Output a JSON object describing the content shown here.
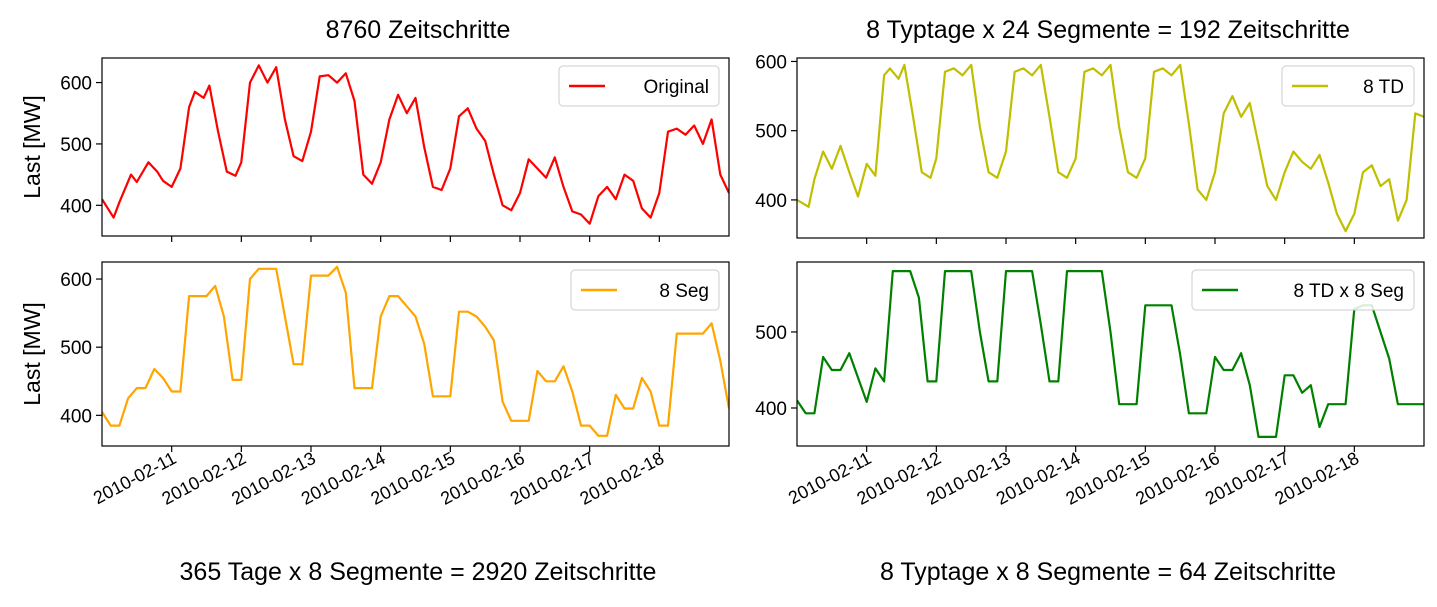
{
  "figure": {
    "top_left_title": "8760 Zeitschritte",
    "top_right_title": "8 Typtage x 24 Segmente = 192 Zeitschritte",
    "bottom_left_caption": "365 Tage x 8 Segmente = 2920 Zeitschritte",
    "bottom_right_caption": "8 Typtage x 8 Segmente = 64 Zeitschritte",
    "ylabel": "Last [MW]"
  },
  "chart_data": [
    {
      "type": "line",
      "title": "8760 Zeitschritte",
      "ylabel": "Last [MW]",
      "ylim": [
        350,
        640
      ],
      "yticks": [
        400,
        500,
        600
      ],
      "x_dates": [
        "2010-02-11",
        "2010-02-12",
        "2010-02-13",
        "2010-02-14",
        "2010-02-15",
        "2010-02-16",
        "2010-02-17",
        "2010-02-18"
      ],
      "xlim": [
        "2010-02-10 00:00",
        "2010-02-19 00:00"
      ],
      "legend": "top-right",
      "series": [
        {
          "name": "Original",
          "color": "#ff0000",
          "x": [
            "2010-02-10 00:00",
            "2010-02-10 04:00",
            "2010-02-10 06:00",
            "2010-02-10 10:00",
            "2010-02-10 12:00",
            "2010-02-10 16:00",
            "2010-02-10 19:00",
            "2010-02-10 21:00",
            "2010-02-11 00:00",
            "2010-02-11 03:00",
            "2010-02-11 06:00",
            "2010-02-11 08:00",
            "2010-02-11 11:00",
            "2010-02-11 13:00",
            "2010-02-11 16:00",
            "2010-02-11 19:00",
            "2010-02-11 22:00",
            "2010-02-12 00:00",
            "2010-02-12 03:00",
            "2010-02-12 06:00",
            "2010-02-12 09:00",
            "2010-02-12 12:00",
            "2010-02-12 15:00",
            "2010-02-12 18:00",
            "2010-02-12 21:00",
            "2010-02-13 00:00",
            "2010-02-13 03:00",
            "2010-02-13 06:00",
            "2010-02-13 09:00",
            "2010-02-13 12:00",
            "2010-02-13 15:00",
            "2010-02-13 18:00",
            "2010-02-13 21:00",
            "2010-02-14 00:00",
            "2010-02-14 03:00",
            "2010-02-14 06:00",
            "2010-02-14 09:00",
            "2010-02-14 12:00",
            "2010-02-14 15:00",
            "2010-02-14 18:00",
            "2010-02-14 21:00",
            "2010-02-15 00:00",
            "2010-02-15 03:00",
            "2010-02-15 06:00",
            "2010-02-15 09:00",
            "2010-02-15 12:00",
            "2010-02-15 15:00",
            "2010-02-15 18:00",
            "2010-02-15 21:00",
            "2010-02-16 00:00",
            "2010-02-16 03:00",
            "2010-02-16 06:00",
            "2010-02-16 09:00",
            "2010-02-16 12:00",
            "2010-02-16 15:00",
            "2010-02-16 18:00",
            "2010-02-16 21:00",
            "2010-02-17 00:00",
            "2010-02-17 03:00",
            "2010-02-17 06:00",
            "2010-02-17 09:00",
            "2010-02-17 12:00",
            "2010-02-17 15:00",
            "2010-02-17 18:00",
            "2010-02-17 21:00",
            "2010-02-18 00:00",
            "2010-02-18 03:00",
            "2010-02-18 06:00",
            "2010-02-18 09:00",
            "2010-02-18 12:00",
            "2010-02-18 15:00",
            "2010-02-18 18:00",
            "2010-02-18 21:00",
            "2010-02-19 00:00"
          ],
          "y": [
            410,
            380,
            405,
            450,
            438,
            470,
            455,
            440,
            430,
            460,
            560,
            585,
            575,
            595,
            520,
            455,
            448,
            470,
            600,
            628,
            600,
            625,
            540,
            480,
            472,
            520,
            610,
            612,
            600,
            615,
            570,
            450,
            435,
            470,
            540,
            580,
            550,
            575,
            495,
            430,
            425,
            460,
            545,
            558,
            525,
            505,
            450,
            400,
            392,
            420,
            475,
            460,
            445,
            478,
            430,
            390,
            385,
            370,
            415,
            430,
            410,
            450,
            440,
            395,
            380,
            420,
            520,
            525,
            515,
            530,
            500,
            540,
            450,
            420
          ]
        }
      ]
    },
    {
      "type": "line",
      "title": "8 Typtage x 24 Segmente = 192 Zeitschritte",
      "ylim": [
        345,
        605
      ],
      "yticks": [
        400,
        500,
        600
      ],
      "x_dates": [
        "2010-02-11",
        "2010-02-12",
        "2010-02-13",
        "2010-02-14",
        "2010-02-15",
        "2010-02-16",
        "2010-02-17",
        "2010-02-18"
      ],
      "xlim": [
        "2010-02-10 00:00",
        "2010-02-19 00:00"
      ],
      "legend": "top-right",
      "series": [
        {
          "name": "8 TD",
          "color": "#bfbf00",
          "x": [
            "2010-02-10 00:00",
            "2010-02-10 04:00",
            "2010-02-10 06:00",
            "2010-02-10 09:00",
            "2010-02-10 12:00",
            "2010-02-10 15:00",
            "2010-02-10 18:00",
            "2010-02-10 21:00",
            "2010-02-11 00:00",
            "2010-02-11 03:00",
            "2010-02-11 06:00",
            "2010-02-11 08:00",
            "2010-02-11 11:00",
            "2010-02-11 13:00",
            "2010-02-11 16:00",
            "2010-02-11 19:00",
            "2010-02-11 22:00",
            "2010-02-12 00:00",
            "2010-02-12 03:00",
            "2010-02-12 06:00",
            "2010-02-12 09:00",
            "2010-02-12 12:00",
            "2010-02-12 15:00",
            "2010-02-12 18:00",
            "2010-02-12 21:00",
            "2010-02-13 00:00",
            "2010-02-13 03:00",
            "2010-02-13 06:00",
            "2010-02-13 09:00",
            "2010-02-13 12:00",
            "2010-02-13 15:00",
            "2010-02-13 18:00",
            "2010-02-13 21:00",
            "2010-02-14 00:00",
            "2010-02-14 03:00",
            "2010-02-14 06:00",
            "2010-02-14 09:00",
            "2010-02-14 12:00",
            "2010-02-14 15:00",
            "2010-02-14 18:00",
            "2010-02-14 21:00",
            "2010-02-15 00:00",
            "2010-02-15 03:00",
            "2010-02-15 06:00",
            "2010-02-15 09:00",
            "2010-02-15 12:00",
            "2010-02-15 15:00",
            "2010-02-15 18:00",
            "2010-02-15 21:00",
            "2010-02-16 00:00",
            "2010-02-16 03:00",
            "2010-02-16 06:00",
            "2010-02-16 09:00",
            "2010-02-16 12:00",
            "2010-02-16 15:00",
            "2010-02-16 18:00",
            "2010-02-16 21:00",
            "2010-02-17 00:00",
            "2010-02-17 03:00",
            "2010-02-17 06:00",
            "2010-02-17 09:00",
            "2010-02-17 12:00",
            "2010-02-17 15:00",
            "2010-02-17 18:00",
            "2010-02-17 21:00",
            "2010-02-18 00:00",
            "2010-02-18 03:00",
            "2010-02-18 06:00",
            "2010-02-18 09:00",
            "2010-02-18 12:00",
            "2010-02-18 15:00",
            "2010-02-18 18:00",
            "2010-02-18 21:00",
            "2010-02-19 00:00"
          ],
          "y": [
            400,
            390,
            430,
            470,
            445,
            478,
            440,
            405,
            452,
            435,
            580,
            590,
            575,
            595,
            520,
            440,
            432,
            460,
            585,
            590,
            580,
            595,
            505,
            440,
            432,
            470,
            585,
            590,
            580,
            595,
            520,
            440,
            432,
            460,
            585,
            590,
            580,
            595,
            505,
            440,
            432,
            460,
            585,
            590,
            580,
            595,
            510,
            415,
            400,
            440,
            525,
            550,
            520,
            540,
            480,
            420,
            400,
            440,
            470,
            455,
            445,
            465,
            425,
            380,
            355,
            380,
            440,
            450,
            420,
            430,
            370,
            400,
            525,
            520
          ]
        }
      ]
    },
    {
      "type": "line",
      "ylabel": "Last [MW]",
      "ylim": [
        355,
        625
      ],
      "yticks": [
        400,
        500,
        600
      ],
      "x_dates": [
        "2010-02-11",
        "2010-02-12",
        "2010-02-13",
        "2010-02-14",
        "2010-02-15",
        "2010-02-16",
        "2010-02-17",
        "2010-02-18"
      ],
      "xlim": [
        "2010-02-10 00:00",
        "2010-02-19 00:00"
      ],
      "legend": "top-right",
      "series": [
        {
          "name": "8 Seg",
          "color": "#ffa500",
          "x": [
            "2010-02-10 00:00",
            "2010-02-10 03:00",
            "2010-02-10 06:00",
            "2010-02-10 09:00",
            "2010-02-10 12:00",
            "2010-02-10 15:00",
            "2010-02-10 18:00",
            "2010-02-10 21:00",
            "2010-02-11 00:00",
            "2010-02-11 03:00",
            "2010-02-11 06:00",
            "2010-02-11 09:00",
            "2010-02-11 12:00",
            "2010-02-11 15:00",
            "2010-02-11 18:00",
            "2010-02-11 21:00",
            "2010-02-12 00:00",
            "2010-02-12 03:00",
            "2010-02-12 06:00",
            "2010-02-12 09:00",
            "2010-02-12 12:00",
            "2010-02-12 15:00",
            "2010-02-12 18:00",
            "2010-02-12 21:00",
            "2010-02-13 00:00",
            "2010-02-13 03:00",
            "2010-02-13 06:00",
            "2010-02-13 09:00",
            "2010-02-13 12:00",
            "2010-02-13 15:00",
            "2010-02-13 18:00",
            "2010-02-13 21:00",
            "2010-02-14 00:00",
            "2010-02-14 03:00",
            "2010-02-14 06:00",
            "2010-02-14 09:00",
            "2010-02-14 12:00",
            "2010-02-14 15:00",
            "2010-02-14 18:00",
            "2010-02-14 21:00",
            "2010-02-15 00:00",
            "2010-02-15 03:00",
            "2010-02-15 06:00",
            "2010-02-15 09:00",
            "2010-02-15 12:00",
            "2010-02-15 15:00",
            "2010-02-15 18:00",
            "2010-02-15 21:00",
            "2010-02-16 00:00",
            "2010-02-16 03:00",
            "2010-02-16 06:00",
            "2010-02-16 09:00",
            "2010-02-16 12:00",
            "2010-02-16 15:00",
            "2010-02-16 18:00",
            "2010-02-16 21:00",
            "2010-02-17 00:00",
            "2010-02-17 03:00",
            "2010-02-17 06:00",
            "2010-02-17 09:00",
            "2010-02-17 12:00",
            "2010-02-17 15:00",
            "2010-02-17 18:00",
            "2010-02-17 21:00",
            "2010-02-18 00:00",
            "2010-02-18 03:00",
            "2010-02-18 06:00",
            "2010-02-18 09:00",
            "2010-02-18 12:00",
            "2010-02-18 15:00",
            "2010-02-18 18:00",
            "2010-02-18 21:00",
            "2010-02-19 00:00"
          ],
          "y": [
            405,
            385,
            385,
            425,
            440,
            440,
            468,
            455,
            435,
            435,
            575,
            575,
            575,
            590,
            545,
            452,
            452,
            600,
            615,
            615,
            615,
            545,
            475,
            475,
            605,
            605,
            605,
            618,
            580,
            440,
            440,
            440,
            545,
            575,
            575,
            560,
            545,
            505,
            428,
            428,
            428,
            552,
            552,
            545,
            530,
            510,
            420,
            392,
            392,
            392,
            465,
            450,
            450,
            472,
            435,
            385,
            385,
            370,
            370,
            430,
            410,
            410,
            455,
            435,
            385,
            385,
            520,
            520,
            520,
            520,
            535,
            480,
            410
          ]
        }
      ]
    },
    {
      "type": "line",
      "ylim": [
        350,
        592
      ],
      "yticks": [
        400,
        500
      ],
      "x_dates": [
        "2010-02-11",
        "2010-02-12",
        "2010-02-13",
        "2010-02-14",
        "2010-02-15",
        "2010-02-16",
        "2010-02-17",
        "2010-02-18"
      ],
      "xlim": [
        "2010-02-10 00:00",
        "2010-02-19 00:00"
      ],
      "legend": "top-right",
      "series": [
        {
          "name": "8 TD x 8 Seg",
          "color": "#008000",
          "x": [
            "2010-02-10 00:00",
            "2010-02-10 03:00",
            "2010-02-10 06:00",
            "2010-02-10 09:00",
            "2010-02-10 12:00",
            "2010-02-10 15:00",
            "2010-02-10 18:00",
            "2010-02-10 21:00",
            "2010-02-11 00:00",
            "2010-02-11 03:00",
            "2010-02-11 06:00",
            "2010-02-11 09:00",
            "2010-02-11 12:00",
            "2010-02-11 15:00",
            "2010-02-11 18:00",
            "2010-02-11 21:00",
            "2010-02-12 00:00",
            "2010-02-12 03:00",
            "2010-02-12 06:00",
            "2010-02-12 09:00",
            "2010-02-12 12:00",
            "2010-02-12 15:00",
            "2010-02-12 18:00",
            "2010-02-12 21:00",
            "2010-02-13 00:00",
            "2010-02-13 03:00",
            "2010-02-13 06:00",
            "2010-02-13 09:00",
            "2010-02-13 12:00",
            "2010-02-13 15:00",
            "2010-02-13 18:00",
            "2010-02-13 21:00",
            "2010-02-14 00:00",
            "2010-02-14 03:00",
            "2010-02-14 06:00",
            "2010-02-14 09:00",
            "2010-02-14 12:00",
            "2010-02-14 15:00",
            "2010-02-14 18:00",
            "2010-02-14 21:00",
            "2010-02-15 00:00",
            "2010-02-15 03:00",
            "2010-02-15 06:00",
            "2010-02-15 09:00",
            "2010-02-15 12:00",
            "2010-02-15 15:00",
            "2010-02-15 18:00",
            "2010-02-15 21:00",
            "2010-02-16 00:00",
            "2010-02-16 03:00",
            "2010-02-16 06:00",
            "2010-02-16 09:00",
            "2010-02-16 12:00",
            "2010-02-16 15:00",
            "2010-02-16 18:00",
            "2010-02-16 21:00",
            "2010-02-17 00:00",
            "2010-02-17 03:00",
            "2010-02-17 06:00",
            "2010-02-17 09:00",
            "2010-02-17 12:00",
            "2010-02-17 15:00",
            "2010-02-17 18:00",
            "2010-02-17 21:00",
            "2010-02-18 00:00",
            "2010-02-18 03:00",
            "2010-02-18 06:00",
            "2010-02-18 09:00",
            "2010-02-18 12:00",
            "2010-02-18 15:00",
            "2010-02-18 18:00",
            "2010-02-18 21:00",
            "2010-02-19 00:00"
          ],
          "y": [
            410,
            393,
            393,
            467,
            450,
            450,
            472,
            440,
            408,
            452,
            435,
            580,
            580,
            580,
            545,
            435,
            435,
            580,
            580,
            580,
            580,
            500,
            435,
            435,
            580,
            580,
            580,
            580,
            510,
            435,
            435,
            580,
            580,
            580,
            580,
            580,
            500,
            405,
            405,
            405,
            535,
            535,
            535,
            535,
            470,
            393,
            393,
            393,
            467,
            450,
            450,
            472,
            430,
            362,
            362,
            362,
            443,
            443,
            420,
            430,
            375,
            405,
            405,
            405,
            530,
            535,
            535,
            500,
            465,
            405,
            405,
            405,
            405
          ]
        }
      ]
    }
  ]
}
